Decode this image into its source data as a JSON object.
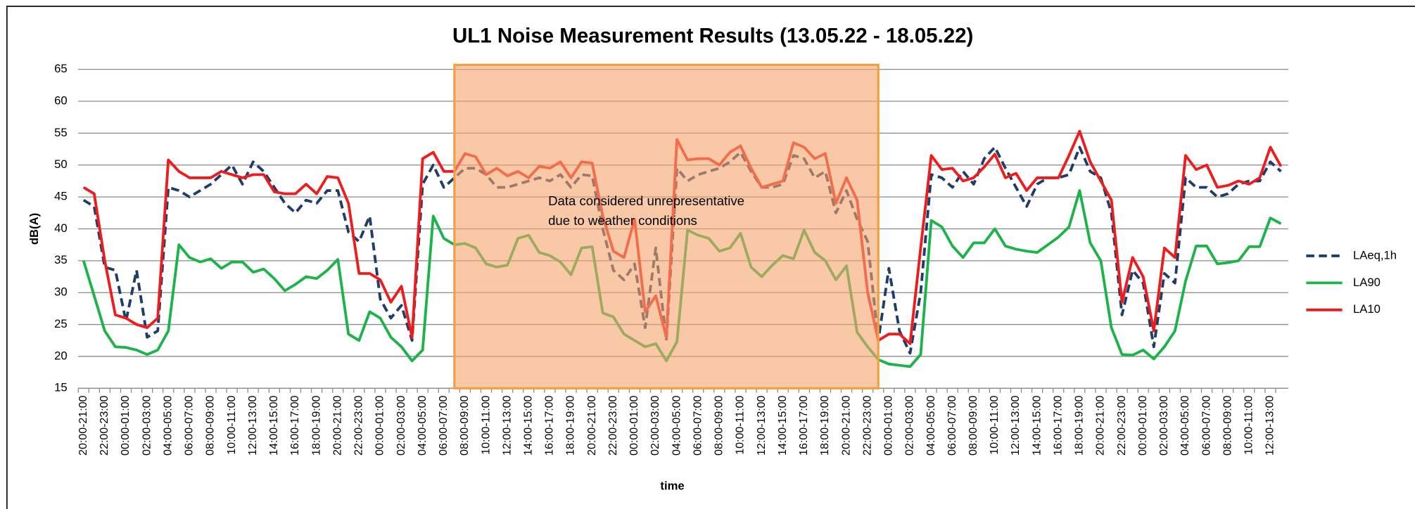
{
  "chart_data": {
    "type": "line",
    "title": "UL1 Noise Measurement Results (13.05.22 - 18.05.22)",
    "x_label": "time",
    "y_label": "dB(A)",
    "categories": [
      "20:00-21:00",
      null,
      "22:00-23:00",
      null,
      "00:00-01:00",
      null,
      "02:00-03:00",
      null,
      "04:00-05:00",
      null,
      "06:00-07:00",
      null,
      "08:00-09:00",
      null,
      "10:00-11:00",
      null,
      "12:00-13:00",
      null,
      "14:00-15:00",
      null,
      "16:00-17:00",
      null,
      "18:00-19:00",
      null,
      "20:00-21:00",
      null,
      "22:00-23:00",
      null,
      "00:00-01:00",
      null,
      "02:00-03:00",
      null,
      "04:00-05:00",
      null,
      "06:00-07:00",
      null,
      "08:00-09:00",
      null,
      "10:00-11:00",
      null,
      "12:00-13:00",
      null,
      "14:00-15:00",
      null,
      "16:00-17:00",
      null,
      "18:00-19:00",
      null,
      "20:00-21:00",
      null,
      "22:00-23:00",
      null,
      "00:00-01:00",
      null,
      "02:00-03:00",
      null,
      "04:00-05:00",
      null,
      "06:00-07:00",
      null,
      "08:00-09:00",
      null,
      "10:00-11:00",
      null,
      "12:00-13:00",
      null,
      "14:00-15:00",
      null,
      "16:00-17:00",
      null,
      "18:00-19:00",
      null,
      "20:00-21:00",
      null,
      "22:00-23:00",
      null,
      "00:00-01:00",
      null,
      "02:00-03:00",
      null,
      "04:00-05:00",
      null,
      "06:00-07:00",
      null,
      "08:00-09:00",
      null,
      "10:00-11:00",
      null,
      "12:00-13:00",
      null,
      "14:00-15:00",
      null,
      "16:00-17:00",
      null,
      "18:00-19:00",
      null,
      "20:00-21:00",
      null,
      "22:00-23:00",
      null,
      "00:00-01:00",
      null,
      "02:00-03:00",
      null,
      "04:00-05:00",
      null,
      "06:00-07:00",
      null,
      "08:00-09:00",
      null,
      "10:00-11:00",
      null,
      "12:00-13:00",
      null
    ],
    "series": [
      {
        "name": "LAeq,1h",
        "color": "#1f3d6b",
        "dashed": true,
        "values": [
          44.5,
          43.5,
          34,
          33.5,
          25.5,
          33.5,
          23,
          24,
          46.5,
          46,
          45,
          46,
          47,
          48.5,
          50,
          47,
          50.5,
          49,
          46.5,
          44,
          42.5,
          44.5,
          44,
          46,
          46,
          39.5,
          38,
          42,
          29,
          26,
          28,
          22.5,
          47,
          50,
          46.5,
          48,
          49.5,
          49.5,
          48.5,
          46.5,
          46.5,
          47,
          47.5,
          48,
          47.5,
          48.5,
          46.5,
          48.5,
          48.3,
          40,
          33.5,
          32,
          34.5,
          24.5,
          37,
          22.5,
          49.5,
          47.5,
          48.5,
          49,
          49.5,
          50.5,
          52,
          49,
          46.5,
          46.5,
          47,
          51.5,
          51,
          48,
          49,
          42.5,
          46,
          41.5,
          38,
          22.5,
          33.8,
          24,
          20.5,
          30,
          48.5,
          48,
          46.5,
          49,
          47,
          51,
          52.8,
          49.5,
          46.5,
          43.5,
          47,
          48,
          48,
          48.5,
          52.8,
          49,
          48,
          42.5,
          26.5,
          33.5,
          31.5,
          21.5,
          33,
          31.5,
          48,
          46.5,
          46.5,
          45,
          45.5,
          47,
          47.5,
          47.5,
          50.5,
          49
        ]
      },
      {
        "name": "LA90",
        "color": "#1db34b",
        "dashed": false,
        "values": [
          35,
          29.5,
          24,
          21.5,
          21.4,
          21,
          20.3,
          21,
          24,
          37.5,
          35.5,
          34.8,
          35.3,
          33.8,
          34.8,
          34.8,
          33.2,
          33.7,
          32.2,
          30.3,
          31.3,
          32.5,
          32.2,
          33.5,
          35.2,
          23.5,
          22.5,
          27,
          26,
          23,
          21.5,
          19.3,
          21,
          42,
          38.5,
          37.5,
          37.7,
          37,
          34.5,
          34,
          34.3,
          38.5,
          39,
          36.3,
          35.8,
          34.8,
          32.8,
          37,
          37.2,
          26.8,
          26.2,
          23.5,
          22.5,
          21.5,
          22,
          19.3,
          22.3,
          39.8,
          39,
          38.5,
          36.5,
          37,
          39.3,
          34,
          32.5,
          34.3,
          35.8,
          35.3,
          39.8,
          36.3,
          35,
          32,
          34.2,
          23.8,
          21.5,
          19.5,
          18.8,
          18.6,
          18.4,
          20.3,
          41.3,
          40.3,
          37.3,
          35.5,
          37.8,
          37.8,
          40,
          37.3,
          36.8,
          36.5,
          36.3,
          37.5,
          38.7,
          40.3,
          46,
          37.8,
          35,
          24.5,
          20.3,
          20.2,
          21,
          19.6,
          21.5,
          24,
          31.8,
          37.3,
          37.3,
          34.5,
          34.7,
          35,
          37.2,
          37.2,
          41.7,
          40.8
        ]
      },
      {
        "name": "LA10",
        "color": "#ee1c1c",
        "dashed": false,
        "values": [
          46.5,
          45.5,
          35,
          26.5,
          26,
          25,
          24.5,
          26,
          50.8,
          49,
          48,
          48,
          48,
          49,
          48.5,
          48,
          48.5,
          48.5,
          45.8,
          45.5,
          45.5,
          47,
          45.5,
          48.2,
          48,
          44,
          33,
          33,
          32,
          28.5,
          31,
          23,
          51,
          52,
          49,
          49,
          51.8,
          51.3,
          48.5,
          49.5,
          48.3,
          49,
          48,
          49.8,
          49.5,
          50.5,
          48,
          50.5,
          50.3,
          42,
          36.5,
          35.5,
          41.5,
          27,
          29.5,
          23,
          54,
          50.8,
          51,
          51,
          50,
          52,
          53,
          49.5,
          46.5,
          47,
          47.5,
          53.5,
          52.8,
          51,
          51.8,
          44,
          48,
          44.5,
          30,
          22.5,
          23.5,
          23.5,
          22,
          37,
          51.5,
          49.3,
          49.5,
          47.5,
          48,
          49.7,
          51.7,
          48,
          48.7,
          46,
          48,
          48,
          48,
          51.5,
          55.3,
          50.5,
          47.5,
          44.5,
          28.5,
          35.5,
          32.5,
          24,
          37,
          35.5,
          51.5,
          49.3,
          50,
          46.5,
          46.8,
          47.5,
          47,
          48,
          52.8,
          49.8
        ]
      }
    ],
    "ylim": [
      15,
      65
    ],
    "yticks": [
      15,
      20,
      25,
      30,
      35,
      40,
      45,
      50,
      55,
      60,
      65
    ],
    "grid": true,
    "legend": "right",
    "annotation": {
      "text": [
        "Data considered unrepresentative",
        "due to weather conditions"
      ],
      "from": 35,
      "to": 75,
      "color": "#f5a46a",
      "border": "#f0a040"
    }
  }
}
